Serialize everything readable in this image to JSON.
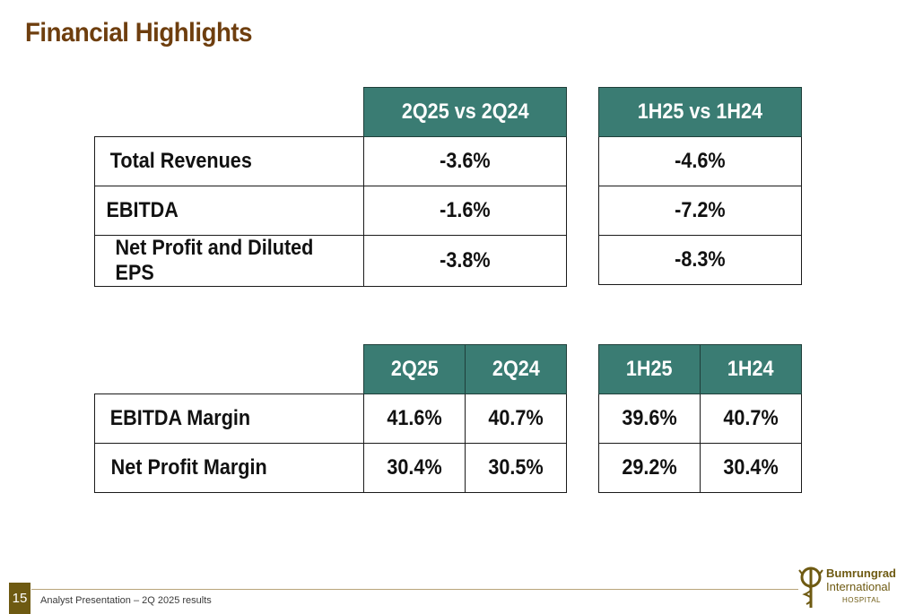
{
  "title": "Financial Highlights",
  "growth_table": {
    "periods": [
      "2Q25 vs 2Q24",
      "1H25 vs 1H24"
    ],
    "rows": [
      {
        "label": "Total Revenues",
        "q": "-3.6%",
        "h": "-4.6%"
      },
      {
        "label": "EBITDA",
        "q": "-1.6%",
        "h": "-7.2%"
      },
      {
        "label": "Net Profit and Diluted EPS",
        "q": "-3.8%",
        "h": "-8.3%"
      }
    ]
  },
  "margin_table": {
    "quarter_headers": [
      "2Q25",
      "2Q24"
    ],
    "half_headers": [
      "1H25",
      "1H24"
    ],
    "rows": [
      {
        "label": "EBITDA Margin",
        "q": [
          "41.6%",
          "40.7%"
        ],
        "h": [
          "39.6%",
          "40.7%"
        ]
      },
      {
        "label": "Net Profit Margin",
        "q": [
          "30.4%",
          "30.5%"
        ],
        "h": [
          "29.2%",
          "30.4%"
        ]
      }
    ]
  },
  "footer": {
    "page_number": "15",
    "text": "Analyst Presentation – 2Q 2025 results"
  },
  "logo": {
    "line1": "Bumrungrad",
    "line2": "International",
    "line3": "HOSPITAL",
    "icon": "caduceus-icon"
  },
  "colors": {
    "title": "#6e3e0e",
    "header_fill": "#3a7c73",
    "page_number_fill": "#6e5a12"
  }
}
